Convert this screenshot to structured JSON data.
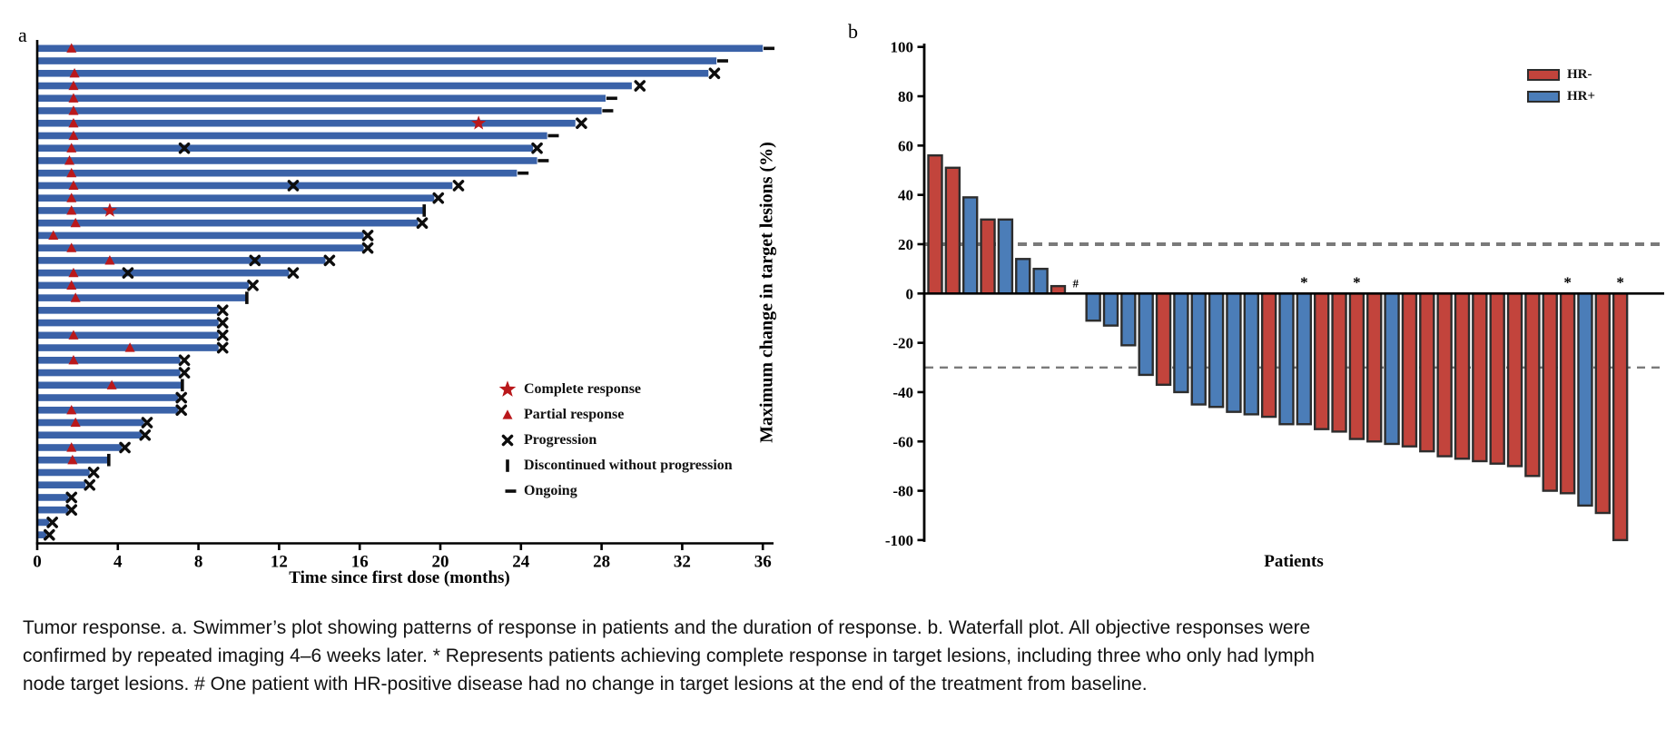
{
  "colors": {
    "swimmer_bar": "#3a62a8",
    "response_red": "#b9181b",
    "marker_black": "#0d0d0d",
    "hr_neg": "#c2443c",
    "hr_pos": "#4b7db8",
    "bar_stroke": "#2d2d2d",
    "threshold_gray": "#7a7a7a",
    "axis_black": "#000000"
  },
  "chart_data": [
    {
      "type": "swimmer",
      "panel_label": "a",
      "xlabel": "Time since first dose (months)",
      "x_ticks": [
        0,
        4,
        8,
        12,
        16,
        20,
        24,
        28,
        32,
        36
      ],
      "xlim": [
        0,
        36.5
      ],
      "legend": [
        {
          "marker": "star",
          "label": "Complete response"
        },
        {
          "marker": "triangle",
          "label": "Partial response"
        },
        {
          "marker": "x",
          "label": "Progression"
        },
        {
          "marker": "discontinued",
          "label": "Discontinued without progression"
        },
        {
          "marker": "ongoing",
          "label": "Ongoing"
        }
      ],
      "patients": [
        {
          "duration": 36.0,
          "markers": [
            [
              "triangle",
              1.7
            ],
            [
              "ongoing",
              36.15
            ]
          ]
        },
        {
          "duration": 33.7,
          "markers": [
            [
              "ongoing",
              33.85
            ]
          ]
        },
        {
          "duration": 33.3,
          "markers": [
            [
              "triangle",
              1.85
            ],
            [
              "x",
              33.6
            ]
          ]
        },
        {
          "duration": 29.5,
          "markers": [
            [
              "triangle",
              1.8
            ],
            [
              "x",
              29.9
            ]
          ]
        },
        {
          "duration": 28.2,
          "markers": [
            [
              "triangle",
              1.8
            ],
            [
              "ongoing",
              28.35
            ]
          ]
        },
        {
          "duration": 28.0,
          "markers": [
            [
              "triangle",
              1.8
            ],
            [
              "ongoing",
              28.15
            ]
          ]
        },
        {
          "duration": 26.7,
          "markers": [
            [
              "triangle",
              1.8
            ],
            [
              "star",
              21.9
            ],
            [
              "x",
              27.0
            ]
          ]
        },
        {
          "duration": 25.3,
          "markers": [
            [
              "triangle",
              1.8
            ],
            [
              "ongoing",
              25.45
            ]
          ]
        },
        {
          "duration": 24.6,
          "markers": [
            [
              "triangle",
              1.7
            ],
            [
              "x",
              7.3
            ],
            [
              "x",
              24.8
            ]
          ]
        },
        {
          "duration": 24.8,
          "markers": [
            [
              "triangle",
              1.6
            ],
            [
              "ongoing",
              24.95
            ]
          ]
        },
        {
          "duration": 23.8,
          "markers": [
            [
              "triangle",
              1.7
            ],
            [
              "ongoing",
              23.95
            ]
          ]
        },
        {
          "duration": 20.6,
          "markers": [
            [
              "triangle",
              1.8
            ],
            [
              "x",
              12.7
            ],
            [
              "x",
              20.9
            ]
          ]
        },
        {
          "duration": 19.7,
          "markers": [
            [
              "triangle",
              1.7
            ],
            [
              "x",
              19.9
            ]
          ]
        },
        {
          "duration": 19.2,
          "markers": [
            [
              "triangle",
              1.7
            ],
            [
              "star",
              3.6
            ],
            [
              "discontinued",
              19.2
            ]
          ]
        },
        {
          "duration": 18.9,
          "markers": [
            [
              "triangle",
              1.9
            ],
            [
              "x",
              19.1
            ]
          ]
        },
        {
          "duration": 16.2,
          "markers": [
            [
              "triangle",
              0.8
            ],
            [
              "x",
              16.4
            ]
          ]
        },
        {
          "duration": 16.2,
          "markers": [
            [
              "triangle",
              1.7
            ],
            [
              "x",
              16.4
            ]
          ]
        },
        {
          "duration": 14.3,
          "markers": [
            [
              "triangle",
              3.6
            ],
            [
              "x",
              10.8
            ],
            [
              "x",
              14.5
            ]
          ]
        },
        {
          "duration": 12.5,
          "markers": [
            [
              "triangle",
              1.8
            ],
            [
              "x",
              4.5
            ],
            [
              "x",
              12.7
            ]
          ]
        },
        {
          "duration": 10.5,
          "markers": [
            [
              "triangle",
              1.7
            ],
            [
              "x",
              10.7
            ]
          ]
        },
        {
          "duration": 10.4,
          "markers": [
            [
              "triangle",
              1.9
            ],
            [
              "discontinued",
              10.4
            ]
          ]
        },
        {
          "duration": 9.0,
          "markers": [
            [
              "x",
              9.2
            ]
          ]
        },
        {
          "duration": 9.0,
          "markers": [
            [
              "x",
              9.2
            ]
          ]
        },
        {
          "duration": 9.0,
          "markers": [
            [
              "triangle",
              1.8
            ],
            [
              "x",
              9.2
            ]
          ]
        },
        {
          "duration": 9.0,
          "markers": [
            [
              "triangle",
              4.6
            ],
            [
              "x",
              9.2
            ]
          ]
        },
        {
          "duration": 7.1,
          "markers": [
            [
              "triangle",
              1.8
            ],
            [
              "x",
              7.3
            ]
          ]
        },
        {
          "duration": 7.1,
          "markers": [
            [
              "x",
              7.3
            ]
          ]
        },
        {
          "duration": 7.2,
          "markers": [
            [
              "triangle",
              3.7
            ],
            [
              "discontinued",
              7.2
            ]
          ]
        },
        {
          "duration": 7.0,
          "markers": [
            [
              "x",
              7.15
            ]
          ]
        },
        {
          "duration": 7.0,
          "markers": [
            [
              "triangle",
              1.7
            ],
            [
              "x",
              7.15
            ]
          ]
        },
        {
          "duration": 5.3,
          "markers": [
            [
              "triangle",
              1.9
            ],
            [
              "x",
              5.45
            ]
          ]
        },
        {
          "duration": 5.2,
          "markers": [
            [
              "x",
              5.35
            ]
          ]
        },
        {
          "duration": 4.2,
          "markers": [
            [
              "triangle",
              1.7
            ],
            [
              "x",
              4.35
            ]
          ]
        },
        {
          "duration": 3.55,
          "markers": [
            [
              "triangle",
              1.75
            ],
            [
              "discontinued",
              3.55
            ]
          ]
        },
        {
          "duration": 2.6,
          "markers": [
            [
              "x",
              2.8
            ]
          ]
        },
        {
          "duration": 2.4,
          "markers": [
            [
              "x",
              2.6
            ]
          ]
        },
        {
          "duration": 1.55,
          "markers": [
            [
              "x",
              1.7
            ]
          ]
        },
        {
          "duration": 1.55,
          "markers": [
            [
              "x",
              1.7
            ]
          ]
        },
        {
          "duration": 0.6,
          "markers": [
            [
              "x",
              0.75
            ]
          ]
        },
        {
          "duration": 0.45,
          "markers": [
            [
              "x",
              0.6
            ]
          ]
        }
      ]
    },
    {
      "type": "waterfall",
      "panel_label": "b",
      "ylabel": "Maximum change in target lesions (%)",
      "xlabel": "Patients",
      "y_ticks": [
        100,
        80,
        60,
        40,
        20,
        0,
        -20,
        -40,
        -60,
        -80,
        -100
      ],
      "ylim": [
        -100,
        100
      ],
      "thresholds": [
        20,
        -30
      ],
      "legend": [
        {
          "label": "HR-",
          "color": "#c2443c"
        },
        {
          "label": "HR+",
          "color": "#4b7db8"
        }
      ],
      "bars": [
        {
          "value": 56,
          "hr": "HR-"
        },
        {
          "value": 51,
          "hr": "HR-"
        },
        {
          "value": 39,
          "hr": "HR+"
        },
        {
          "value": 30,
          "hr": "HR-"
        },
        {
          "value": 30,
          "hr": "HR+"
        },
        {
          "value": 14,
          "hr": "HR+"
        },
        {
          "value": 10,
          "hr": "HR+"
        },
        {
          "value": 3,
          "hr": "HR-"
        },
        {
          "value": 0,
          "hr": "HR+",
          "annotation": "#"
        },
        {
          "value": -11,
          "hr": "HR+"
        },
        {
          "value": -13,
          "hr": "HR+"
        },
        {
          "value": -21,
          "hr": "HR+"
        },
        {
          "value": -33,
          "hr": "HR+"
        },
        {
          "value": -37,
          "hr": "HR-"
        },
        {
          "value": -40,
          "hr": "HR+"
        },
        {
          "value": -45,
          "hr": "HR+"
        },
        {
          "value": -46,
          "hr": "HR+"
        },
        {
          "value": -48,
          "hr": "HR+"
        },
        {
          "value": -49,
          "hr": "HR+"
        },
        {
          "value": -50,
          "hr": "HR-"
        },
        {
          "value": -53,
          "hr": "HR+"
        },
        {
          "value": -53,
          "hr": "HR+",
          "annotation": "*"
        },
        {
          "value": -55,
          "hr": "HR-"
        },
        {
          "value": -56,
          "hr": "HR-"
        },
        {
          "value": -59,
          "hr": "HR-",
          "annotation": "*"
        },
        {
          "value": -60,
          "hr": "HR-"
        },
        {
          "value": -61,
          "hr": "HR+"
        },
        {
          "value": -62,
          "hr": "HR-"
        },
        {
          "value": -64,
          "hr": "HR-"
        },
        {
          "value": -66,
          "hr": "HR-"
        },
        {
          "value": -67,
          "hr": "HR-"
        },
        {
          "value": -68,
          "hr": "HR-"
        },
        {
          "value": -69,
          "hr": "HR-"
        },
        {
          "value": -70,
          "hr": "HR-"
        },
        {
          "value": -74,
          "hr": "HR-"
        },
        {
          "value": -80,
          "hr": "HR-"
        },
        {
          "value": -81,
          "hr": "HR-",
          "annotation": "*"
        },
        {
          "value": -86,
          "hr": "HR+"
        },
        {
          "value": -89,
          "hr": "HR-"
        },
        {
          "value": -100,
          "hr": "HR-",
          "annotation": "*"
        }
      ]
    }
  ],
  "caption": {
    "lines": [
      "Tumor response. a. Swimmer’s plot showing patterns of response in patients and the duration of response. b. Waterfall plot. All objective responses were",
      "confirmed by repeated imaging 4–6 weeks later. * Represents patients achieving complete response in target lesions, including three who only had lymph",
      "node target lesions. # One patient with HR-positive disease had no change in target lesions at the end of the treatment from baseline."
    ]
  }
}
